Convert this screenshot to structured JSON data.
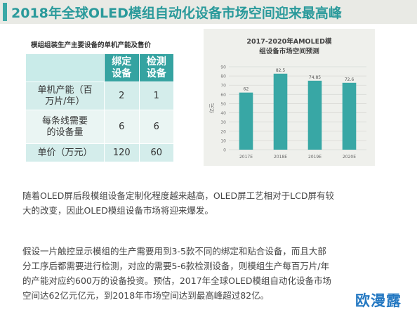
{
  "header": {
    "title": "2018年全球OLED模组自动化设备市场空间迎来最高峰"
  },
  "table": {
    "title": "模组组装生产主要设备的单机产能及售价",
    "columns": [
      "绑定设备",
      "检测设备"
    ],
    "rows": [
      {
        "label": "单机产能（百万片/年）",
        "values": [
          "2",
          "1"
        ]
      },
      {
        "label": "每条线需要的设备量",
        "values": [
          "6",
          "6"
        ]
      },
      {
        "label": "单价（万元）",
        "values": [
          "120",
          "60"
        ]
      }
    ]
  },
  "chart_data": {
    "type": "bar",
    "title": "2017-2020年AMOLED模组设备市场空间预测",
    "categories": [
      "2017E",
      "2018E",
      "2019E",
      "2020E"
    ],
    "values": [
      62,
      82.5,
      74.85,
      72.6
    ],
    "data_labels": [
      "62",
      "82.5",
      "74.85",
      "72.6"
    ],
    "ylabel": "亿元",
    "ylim": [
      0,
      90
    ],
    "yticks": [
      "0",
      "10",
      "20",
      "30",
      "40",
      "50",
      "60",
      "70",
      "80",
      "90"
    ],
    "grid": true,
    "bar_color": "#38a7a5"
  },
  "paragraphs": {
    "p1": [
      "随着OLED屏后段模组设备定制化程度越来越高，OLED屏工艺相对于LCD屏有较",
      "大的改变，因此OLED模组设备市场将迎来爆发。"
    ],
    "p2": [
      "假设一片触控显示模组的生产需要用到3-5款不同的绑定和贴合设备，而且大部",
      "分工序后都需要进行检测，对应的需要5-6款检测设备，则模组生产每百万片/年",
      "的产能对应约600万的设备投资。预估，2017年全球OLED模组自动化设备市场",
      "空间达62亿元亿元，到2018年市场空间达到最高峰超过82亿。"
    ]
  },
  "watermark": {
    "text": "欧漫露"
  }
}
